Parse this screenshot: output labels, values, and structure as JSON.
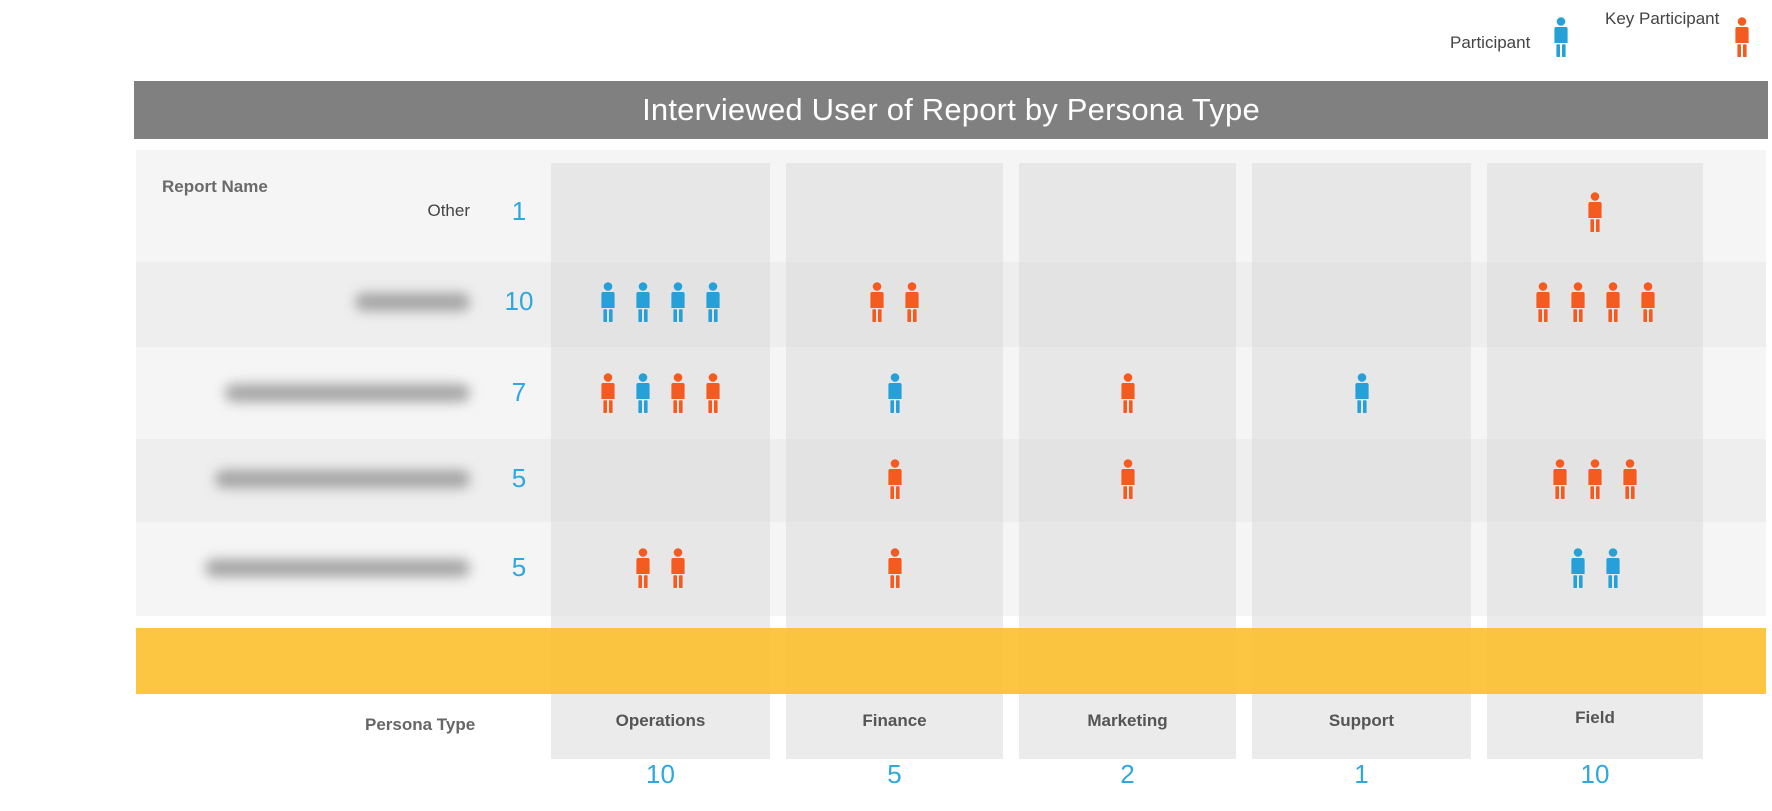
{
  "legend": {
    "participant_label": "Participant",
    "key_participant_label": "Key Participant",
    "participant_color": "#26a0d8",
    "key_participant_color": "#f55a1e"
  },
  "chart_data": {
    "type": "table",
    "title": "Interviewed User of Report by Persona Type",
    "row_header": "Report Name",
    "column_header": "Persona Type",
    "columns": [
      "Operations",
      "Finance",
      "Marketing",
      "Support",
      "Field"
    ],
    "column_totals": [
      "10",
      "5",
      "2",
      "1",
      "10"
    ],
    "rows": [
      {
        "label": "Other",
        "label_obscured": false,
        "total": "1",
        "cells": [
          [],
          [],
          [],
          [],
          [
            "K"
          ]
        ]
      },
      {
        "label": "",
        "label_obscured": true,
        "total": "10",
        "cells": [
          [
            "P",
            "P",
            "P",
            "P"
          ],
          [
            "K",
            "K"
          ],
          [],
          [],
          [
            "K",
            "K",
            "K",
            "K"
          ]
        ]
      },
      {
        "label": "",
        "label_obscured": true,
        "total": "7",
        "cells": [
          [
            "K",
            "P",
            "K",
            "K"
          ],
          [
            "P"
          ],
          [
            "K"
          ],
          [
            "P"
          ],
          []
        ]
      },
      {
        "label": "",
        "label_obscured": true,
        "total": "5",
        "cells": [
          [],
          [
            "K"
          ],
          [
            "K"
          ],
          [],
          [
            "K",
            "K",
            "K"
          ]
        ]
      },
      {
        "label": "",
        "label_obscured": true,
        "total": "5",
        "cells": [
          [
            "K",
            "K"
          ],
          [
            "K"
          ],
          [],
          [],
          [
            "P",
            "P"
          ]
        ]
      }
    ],
    "icon_legend": {
      "P": "Participant",
      "K": "Key Participant"
    }
  }
}
